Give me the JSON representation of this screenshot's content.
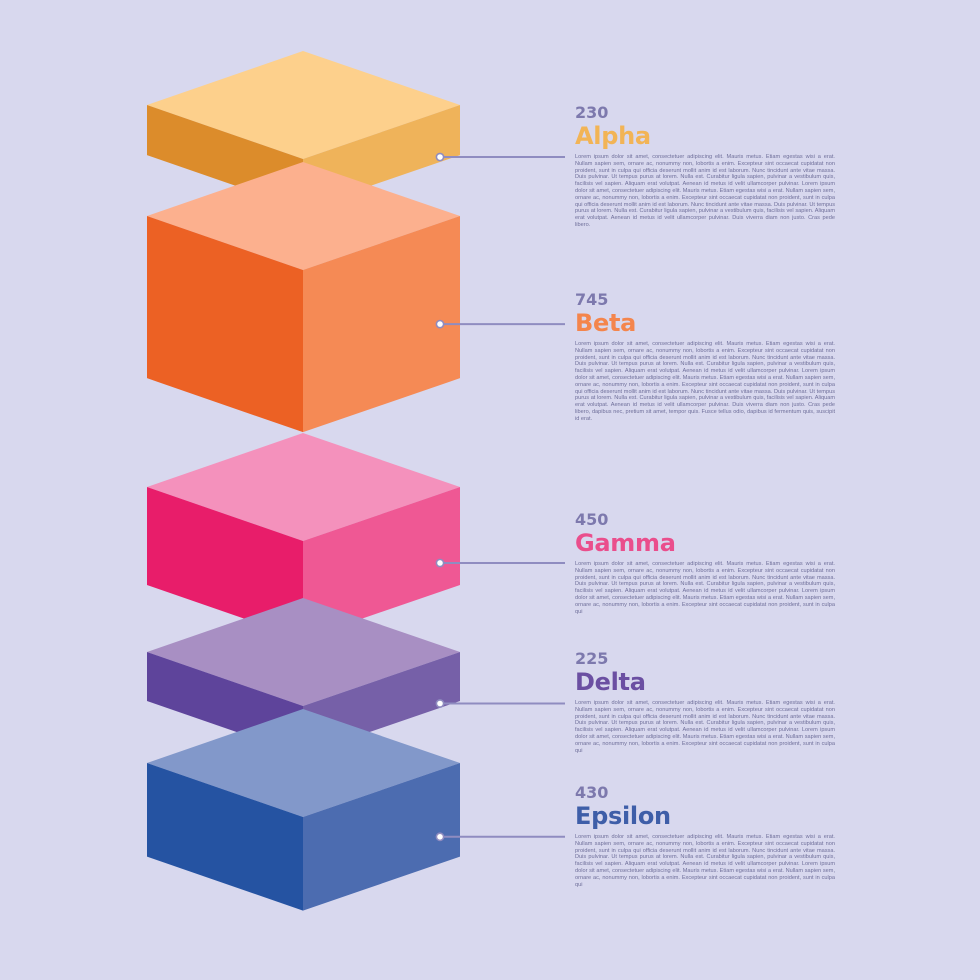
{
  "chart_data": {
    "type": "bar",
    "categories": [
      "Alpha",
      "Beta",
      "Gamma",
      "Delta",
      "Epsilon"
    ],
    "values": [
      230,
      745,
      450,
      225,
      430
    ],
    "colors": {
      "Alpha": {
        "top": "#fdd08c",
        "left": "#dc8c2b",
        "right": "#efb35a",
        "label": "#f2b456"
      },
      "Beta": {
        "top": "#fcb08e",
        "left": "#ec6124",
        "right": "#f58a55",
        "label": "#f4854c"
      },
      "Gamma": {
        "top": "#f491bc",
        "left": "#e81d6a",
        "right": "#ef5894",
        "label": "#ea4e8c"
      },
      "Delta": {
        "top": "#a88fc3",
        "left": "#5e449b",
        "right": "#7660a8",
        "label": "#6b4fa2"
      },
      "Epsilon": {
        "top": "#8298ca",
        "left": "#2553a2",
        "right": "#4c6cb0",
        "label": "#3e5ea8"
      }
    },
    "descriptions": [
      "Lorem ipsum dolor sit amet, consectetuer adipiscing elit. Mauris metus. Etiam egestas wisi a erat. Nullam sapien sem, ornare ac, nonummy non, lobortis a enim. Excepteur sint occaecat cupidatat non proident, sunt in culpa qui officia deserunt mollit anim id est laborum. Nunc tincidunt ante vitae massa. Duis pulvinar. Ut tempus purus at lorem. Nulla est. Curabitur ligula sapien, pulvinar a vestibulum quis, facilisis vel sapien. Aliquam erat volutpat. Aenean id metus id velit ullamcorper pulvinar. Lorem ipsum dolor sit amet, consectetuer adipiscing elit. Mauris metus. Etiam egestas wisi a erat. Nullam sapien sem, ornare ac, nonummy non, lobortis a enim. Excepteur sint occaecat cupidatat non proident, sunt in culpa qui officia deserunt mollit anim id est laborum. Nunc tincidunt ante vitae massa. Duis pulvinar. Ut tempus purus at lorem. Nulla est. Curabitur ligula sapien, pulvinar a vestibulum quis, facilisis vel sapien. Aliquam erat volutpat. Aenean id metus id velit ullamcorper pulvinar. Duis viverra diam non justo. Cras pede libero.",
      "Lorem ipsum dolor sit amet, consectetuer adipiscing elit. Mauris metus. Etiam egestas wisi a erat. Nullam sapien sem, ornare ac, nonummy non, lobortis a enim. Excepteur sint occaecat cupidatat non proident, sunt in culpa qui officia deserunt mollit anim id est laborum. Nunc tincidunt ante vitae massa. Duis pulvinar. Ut tempus purus at lorem. Nulla est. Curabitur ligula sapien, pulvinar a vestibulum quis, facilisis vel sapien. Aliquam erat volutpat. Aenean id metus id velit ullamcorper pulvinar. Lorem ipsum dolor sit amet, consectetuer adipiscing elit. Mauris metus. Etiam egestas wisi a erat. Nullam sapien sem, ornare ac, nonummy non, lobortis a enim. Excepteur sint occaecat cupidatat non proident, sunt in culpa qui officia deserunt mollit anim id est laborum. Nunc tincidunt ante vitae massa. Duis pulvinar. Ut tempus purus at lorem. Nulla est. Curabitur ligula sapien, pulvinar a vestibulum quis, facilisis vel sapien. Aliquam erat volutpat. Aenean id metus id velit ullamcorper pulvinar. Duis viverra diam non justo. Cras pede libero, dapibus nec, pretium sit amet, tempor quis. Fusce tellus odio, dapibus id fermentum quis, suscipit id erat.",
      "Lorem ipsum dolor sit amet, consectetuer adipiscing elit. Mauris metus. Etiam egestas wisi a erat. Nullam sapien sem, ornare ac, nonummy non, lobortis a enim. Excepteur sint occaecat cupidatat non proident, sunt in culpa qui officia deserunt mollit anim id est laborum. Nunc tincidunt ante vitae massa. Duis pulvinar. Ut tempus purus at lorem. Nulla est. Curabitur ligula sapien, pulvinar a vestibulum quis, facilisis vel sapien. Aliquam erat volutpat. Aenean id metus id velit ullamcorper pulvinar. Lorem ipsum dolor sit amet, consectetuer adipiscing elit. Mauris metus. Etiam egestas wisi a erat. Nullam sapien sem, ornare ac, nonummy non, lobortis a enim. Excepteur sint occaecat cupidatat non proident, sunt in culpa qui",
      "Lorem ipsum dolor sit amet, consectetuer adipiscing elit. Mauris metus. Etiam egestas wisi a erat. Nullam sapien sem, ornare ac, nonummy non, lobortis a enim. Excepteur sint occaecat cupidatat non proident, sunt in culpa qui officia deserunt mollit anim id est laborum. Nunc tincidunt ante vitae massa. Duis pulvinar. Ut tempus purus at lorem. Nulla est. Curabitur ligula sapien, pulvinar a vestibulum quis, facilisis vel sapien. Aliquam erat volutpat. Aenean id metus id velit ullamcorper pulvinar. Lorem ipsum dolor sit amet, consectetuer adipiscing elit. Mauris metus. Etiam egestas wisi a erat. Nullam sapien sem, ornare ac, nonummy non, lobortis a enim. Excepteur sint occaecat cupidatat non proident, sunt in culpa qui",
      "Lorem ipsum dolor sit amet, consectetuer adipiscing elit. Mauris metus. Etiam egestas wisi a erat. Nullam sapien sem, ornare ac, nonummy non, lobortis a enim. Excepteur sint occaecat cupidatat non proident, sunt in culpa qui officia deserunt mollit anim id est laborum. Nunc tincidunt ante vitae massa. Duis pulvinar. Ut tempus purus at lorem. Nulla est. Curabitur ligula sapien, pulvinar a vestibulum quis, facilisis vel sapien. Aliquam erat volutpat. Aenean id metus id velit ullamcorper pulvinar. Lorem ipsum dolor sit amet, consectetuer adipiscing elit. Mauris metus. Etiam egestas wisi a erat. Nullam sapien sem, ornare ac, nonummy non, lobortis a enim. Excepteur sint occaecat cupidatat non proident, sunt in culpa qui"
    ]
  }
}
